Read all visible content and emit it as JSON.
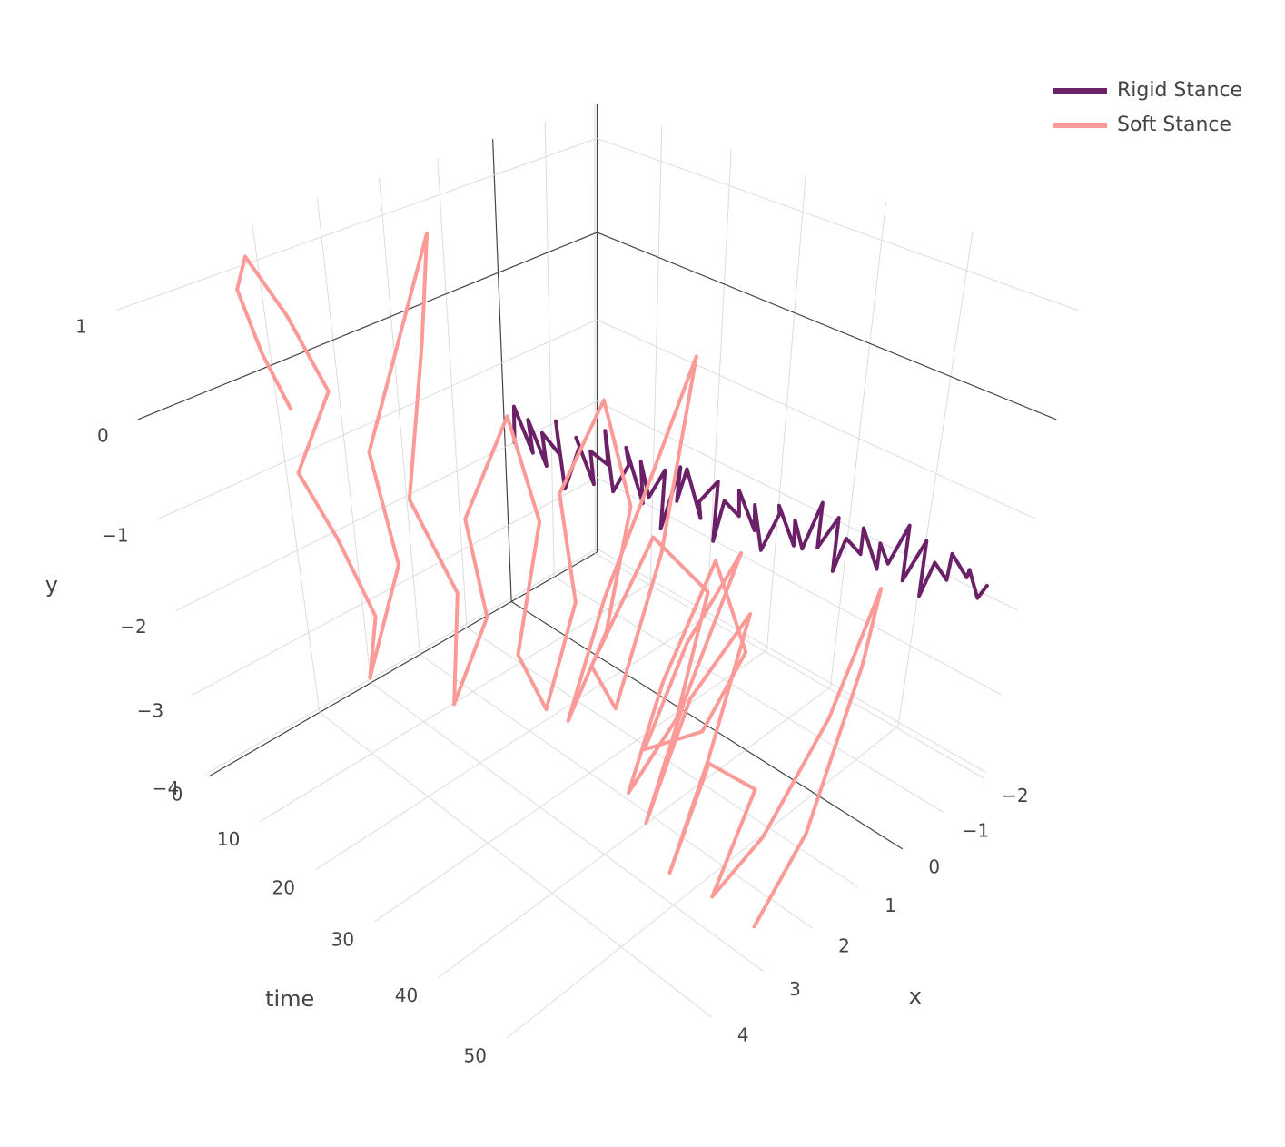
{
  "chart_data": {
    "type": "line3d",
    "x_label": "x",
    "y_label": "y",
    "time_label": "time",
    "timelim": [
      0,
      62
    ],
    "timeticks": [
      0,
      10,
      20,
      30,
      40,
      50
    ],
    "xlim": [
      -2.05,
      6
    ],
    "xticks": [
      {
        "value": -2,
        "label": "−2"
      },
      {
        "value": -1,
        "label": "−1"
      },
      0,
      1,
      2,
      3,
      4
    ],
    "ylim": [
      -4.05,
      1.35
    ],
    "yticks": [
      {
        "value": -4,
        "label": "−4"
      },
      {
        "value": -3,
        "label": "−3"
      },
      {
        "value": -2,
        "label": "−2"
      },
      {
        "value": -1,
        "label": "−1"
      },
      0,
      1
    ],
    "grid": true,
    "zeroline": true,
    "legend": "top-right",
    "series": [
      {
        "name": "Rigid Stance",
        "color": "#6b2167",
        "time": [
          0,
          1,
          2,
          3,
          4,
          5,
          6,
          7,
          8,
          9,
          10,
          11,
          12,
          13,
          14,
          15,
          16,
          17,
          18,
          19,
          20,
          21,
          22,
          23,
          24,
          25,
          26,
          27,
          28,
          29,
          30,
          31,
          32,
          33,
          34,
          35,
          36,
          37,
          38,
          39,
          40,
          41,
          42,
          43,
          44,
          45,
          46,
          47,
          48,
          49,
          50,
          51,
          52,
          53,
          54,
          55,
          56,
          57,
          58,
          59,
          60,
          61
        ],
        "x": [
          -0.2,
          -0.1,
          -0.35,
          -0.15,
          -0.4,
          -0.2,
          -0.45,
          -0.25,
          -0.3,
          -0.5,
          -0.3,
          -0.55,
          -0.35,
          -0.6,
          -0.4,
          -0.45,
          -0.65,
          -0.45,
          -0.7,
          -0.5,
          -0.55,
          -0.75,
          -0.55,
          -0.8,
          -0.6,
          -0.65,
          -0.85,
          -0.65,
          -0.9,
          -0.7,
          -0.75,
          -0.95,
          -0.75,
          -1.0,
          -0.8,
          -0.85,
          -1.05,
          -0.85,
          -1.1,
          -0.9,
          -0.95,
          -1.15,
          -0.95,
          -1.2,
          -1.0,
          -1.05,
          -1.25,
          -1.05,
          -1.3,
          -1.1,
          -1.15,
          -1.35,
          -1.15,
          -1.4,
          -1.2,
          -1.25,
          -1.4,
          -1.2,
          -1.45,
          -1.25,
          -1.35,
          -1.3
        ],
        "y": [
          -2.0,
          -1.5,
          -2.1,
          -1.6,
          -2.2,
          -1.7,
          -2.0,
          -1.5,
          -2.3,
          -1.8,
          -1.6,
          -2.2,
          -1.7,
          -1.9,
          -1.4,
          -2.1,
          -1.8,
          -1.5,
          -2.2,
          -1.6,
          -2.0,
          -1.7,
          -2.3,
          -1.6,
          -1.9,
          -1.5,
          -2.1,
          -1.8,
          -1.6,
          -2.2,
          -1.7,
          -1.9,
          -1.5,
          -2.0,
          -1.6,
          -2.1,
          -1.7,
          -1.5,
          -2.0,
          -1.6,
          -1.9,
          -1.4,
          -1.8,
          -1.5,
          -2.0,
          -1.6,
          -1.8,
          -1.4,
          -1.9,
          -1.5,
          -1.7,
          -1.3,
          -1.8,
          -1.4,
          -1.9,
          -1.5,
          -1.7,
          -1.3,
          -1.6,
          -1.4,
          -1.7,
          -1.5
        ]
      },
      {
        "name": "Soft Stance",
        "color": "#fc9a98",
        "time": [
          0,
          1,
          2,
          3,
          4,
          5,
          6,
          7,
          8,
          9,
          10,
          11,
          12,
          13,
          14,
          15,
          16,
          17,
          18,
          19,
          20,
          21,
          22,
          23,
          24,
          25,
          26,
          27,
          28,
          29,
          30,
          31,
          32,
          33,
          34,
          35,
          36,
          37,
          38,
          39,
          40,
          41,
          42,
          43,
          44,
          45,
          46,
          47,
          48,
          49,
          50,
          51,
          52,
          53,
          54,
          55,
          56,
          57,
          58,
          59,
          60,
          61
        ],
        "x": [
          3.8,
          4.2,
          4.5,
          4.4,
          4.0,
          3.6,
          4.3,
          3.9,
          3.5,
          3.8,
          3.2,
          3.6,
          3.0,
          2.6,
          2.9,
          3.4,
          2.8,
          3.1,
          2.5,
          2.9,
          2.2,
          1.8,
          2.4,
          2.0,
          1.5,
          1.9,
          1.2,
          0.8,
          1.4,
          2.3,
          1.7,
          0.9,
          0.3,
          1.0,
          2.0,
          2.6,
          1.6,
          0.6,
          1.3,
          2.4,
          1.9,
          1.1,
          0.5,
          1.5,
          2.8,
          2.2,
          1.4,
          2.5,
          3.3,
          2.7,
          1.8,
          2.6,
          3.4,
          2.9,
          2.1,
          3.0,
          2.2,
          1.2,
          0.6,
          1.0,
          2.0,
          3.1
        ],
        "y": [
          -0.5,
          0.2,
          0.9,
          1.2,
          0.6,
          -0.2,
          -0.8,
          -1.6,
          -2.6,
          -3.2,
          -2.0,
          -0.6,
          0.5,
          1.3,
          0.4,
          -1.0,
          -2.2,
          -3.4,
          -2.5,
          -1.2,
          -0.3,
          -1.5,
          -2.8,
          -3.6,
          -2.4,
          -1.0,
          -0.2,
          -1.4,
          -2.6,
          -3.3,
          -2.0,
          -0.8,
          0.2,
          -1.6,
          -3.0,
          -2.2,
          -1.1,
          -2.0,
          -3.2,
          -3.6,
          -2.4,
          -1.3,
          -2.5,
          -3.0,
          -2.6,
          -1.6,
          -0.9,
          -2.0,
          -3.0,
          -1.8,
          -1.2,
          -2.4,
          -3.3,
          -2.2,
          -2.8,
          -3.6,
          -3.2,
          -2.2,
          -1.0,
          -1.6,
          -3.0,
          -3.5
        ]
      }
    ]
  }
}
